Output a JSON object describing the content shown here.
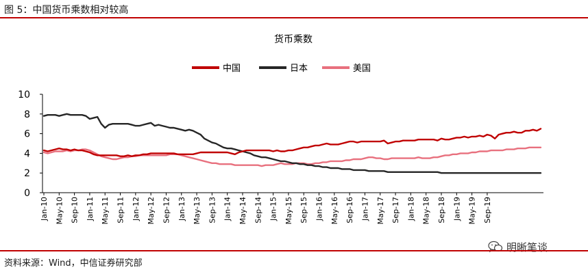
{
  "figure": {
    "title": "图 5：中国货币乘数相对较高",
    "source": "资料来源：Wind，中信证券研究部",
    "watermark": "明晰笔谈",
    "watermark_icon": "wechat-icon"
  },
  "chart_data": {
    "type": "line",
    "title": "货币乘数",
    "xlabel": "",
    "ylabel": "",
    "ylim": [
      0,
      10
    ],
    "yticks": [
      0,
      2,
      4,
      6,
      8,
      10
    ],
    "grid": false,
    "legend_position": "top-center",
    "x_tick_labels": [
      "Jan-10",
      "May-10",
      "Sep-10",
      "Jan-11",
      "May-11",
      "Sep-11",
      "Jan-12",
      "May-12",
      "Sep-12",
      "Jan-13",
      "May-13",
      "Sep-13",
      "Jan-14",
      "May-14",
      "Sep-14",
      "Jan-15",
      "May-15",
      "Sep-15",
      "Jan-16",
      "May-16",
      "Sep-16",
      "Jan-17",
      "May-17",
      "Sep-17",
      "Jan-18",
      "May-18",
      "Sep-18",
      "Jan-19",
      "May-19",
      "Sep-19"
    ],
    "series": [
      {
        "name": "中国",
        "color": "#c00000",
        "values": [
          4.3,
          4.2,
          4.3,
          4.4,
          4.5,
          4.4,
          4.4,
          4.3,
          4.4,
          4.3,
          4.3,
          4.2,
          4.1,
          3.9,
          3.8,
          3.8,
          3.8,
          3.8,
          3.8,
          3.8,
          3.7,
          3.7,
          3.8,
          3.7,
          3.8,
          3.8,
          3.9,
          3.9,
          4.0,
          4.0,
          4.0,
          4.0,
          4.0,
          4.0,
          4.0,
          3.9,
          3.9,
          3.9,
          3.9,
          3.9,
          4.0,
          4.1,
          4.1,
          4.1,
          4.1,
          4.1,
          4.1,
          4.1,
          4.1,
          4.0,
          3.9,
          4.1,
          4.2,
          4.3,
          4.3,
          4.3,
          4.3,
          4.3,
          4.3,
          4.3,
          4.2,
          4.3,
          4.2,
          4.2,
          4.3,
          4.3,
          4.4,
          4.5,
          4.6,
          4.6,
          4.7,
          4.8,
          4.8,
          4.9,
          5.0,
          4.9,
          4.9,
          4.9,
          5.0,
          5.1,
          5.2,
          5.2,
          5.1,
          5.2,
          5.2,
          5.2,
          5.2,
          5.2,
          5.2,
          5.3,
          5.0,
          5.1,
          5.2,
          5.2,
          5.3,
          5.3,
          5.3,
          5.3,
          5.4,
          5.4,
          5.4,
          5.4,
          5.4,
          5.3,
          5.5,
          5.4,
          5.4,
          5.5,
          5.6,
          5.6,
          5.7,
          5.6,
          5.7,
          5.7,
          5.8,
          5.7,
          5.9,
          5.8,
          5.5,
          5.9,
          6.0,
          6.1,
          6.1,
          6.2,
          6.1,
          6.1,
          6.3,
          6.3,
          6.4,
          6.3,
          6.5
        ]
      },
      {
        "name": "日本",
        "color": "#262626",
        "values": [
          7.8,
          7.9,
          7.9,
          7.9,
          7.8,
          7.9,
          8.0,
          7.9,
          7.9,
          7.9,
          7.9,
          7.8,
          7.5,
          7.6,
          7.7,
          7.0,
          6.6,
          6.9,
          7.0,
          7.0,
          7.0,
          7.0,
          7.0,
          6.9,
          6.8,
          6.8,
          6.9,
          7.0,
          7.1,
          6.8,
          6.9,
          6.8,
          6.7,
          6.6,
          6.6,
          6.5,
          6.4,
          6.3,
          6.4,
          6.3,
          6.1,
          5.9,
          5.5,
          5.3,
          5.1,
          5.0,
          4.8,
          4.6,
          4.5,
          4.5,
          4.4,
          4.3,
          4.2,
          4.1,
          4.0,
          3.8,
          3.7,
          3.6,
          3.6,
          3.5,
          3.4,
          3.3,
          3.2,
          3.2,
          3.1,
          3.0,
          3.0,
          2.9,
          2.9,
          2.8,
          2.8,
          2.7,
          2.7,
          2.6,
          2.6,
          2.5,
          2.5,
          2.5,
          2.4,
          2.4,
          2.4,
          2.3,
          2.3,
          2.3,
          2.3,
          2.2,
          2.2,
          2.2,
          2.2,
          2.2,
          2.1,
          2.1,
          2.1,
          2.1,
          2.1,
          2.1,
          2.1,
          2.1,
          2.1,
          2.1,
          2.1,
          2.1,
          2.1,
          2.1,
          2.0,
          2.0,
          2.0,
          2.0,
          2.0,
          2.0,
          2.0,
          2.0,
          2.0,
          2.0,
          2.0,
          2.0,
          2.0,
          2.0,
          2.0,
          2.0,
          2.0,
          2.0,
          2.0,
          2.0,
          2.0,
          2.0,
          2.0,
          2.0,
          2.0,
          2.0,
          2.0
        ]
      },
      {
        "name": "美国",
        "color": "#e8707e",
        "values": [
          4.1,
          4.0,
          4.1,
          4.2,
          4.2,
          4.2,
          4.3,
          4.2,
          4.3,
          4.3,
          4.4,
          4.4,
          4.3,
          4.1,
          3.9,
          3.7,
          3.6,
          3.5,
          3.4,
          3.4,
          3.5,
          3.6,
          3.6,
          3.7,
          3.7,
          3.8,
          3.8,
          3.8,
          3.8,
          3.8,
          3.8,
          3.8,
          3.8,
          3.9,
          3.9,
          3.9,
          3.8,
          3.7,
          3.6,
          3.5,
          3.4,
          3.3,
          3.2,
          3.1,
          3.0,
          3.0,
          2.9,
          2.9,
          2.9,
          2.9,
          2.8,
          2.8,
          2.8,
          2.8,
          2.8,
          2.8,
          2.8,
          2.7,
          2.8,
          2.8,
          2.8,
          2.9,
          3.0,
          2.9,
          2.9,
          2.9,
          3.0,
          3.0,
          3.0,
          2.9,
          2.9,
          3.0,
          3.0,
          3.1,
          3.1,
          3.2,
          3.2,
          3.2,
          3.2,
          3.3,
          3.3,
          3.4,
          3.4,
          3.4,
          3.5,
          3.6,
          3.6,
          3.5,
          3.5,
          3.4,
          3.4,
          3.5,
          3.5,
          3.5,
          3.5,
          3.5,
          3.5,
          3.5,
          3.6,
          3.5,
          3.5,
          3.5,
          3.6,
          3.6,
          3.7,
          3.8,
          3.8,
          3.9,
          3.9,
          4.0,
          4.0,
          4.0,
          4.1,
          4.1,
          4.2,
          4.2,
          4.2,
          4.3,
          4.3,
          4.3,
          4.3,
          4.4,
          4.4,
          4.4,
          4.5,
          4.5,
          4.5,
          4.6,
          4.6,
          4.6,
          4.6
        ]
      }
    ]
  }
}
